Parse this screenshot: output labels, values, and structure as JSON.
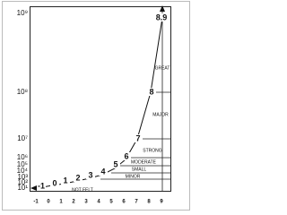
{
  "y_axis": {
    "labels": [
      "10⁹",
      "10⁸",
      "10⁷",
      "10⁶",
      "10⁵",
      "10⁴",
      "10³",
      "10²",
      "10¹"
    ]
  },
  "x_axis": {
    "labels": [
      "-1",
      "0",
      "1",
      "2",
      "3",
      "4",
      "5",
      "6",
      "7",
      "8",
      "9"
    ]
  },
  "curve": {
    "labels": [
      "-1",
      "0",
      "1",
      "2",
      "3",
      "4",
      "5",
      "6",
      "7",
      "8",
      "8.9"
    ]
  },
  "bands": {
    "labels": [
      "GREAT",
      "MAJOR",
      "STRONG",
      "MODERATE",
      "SMALL",
      "MINOR",
      "NOT FELT"
    ]
  }
}
